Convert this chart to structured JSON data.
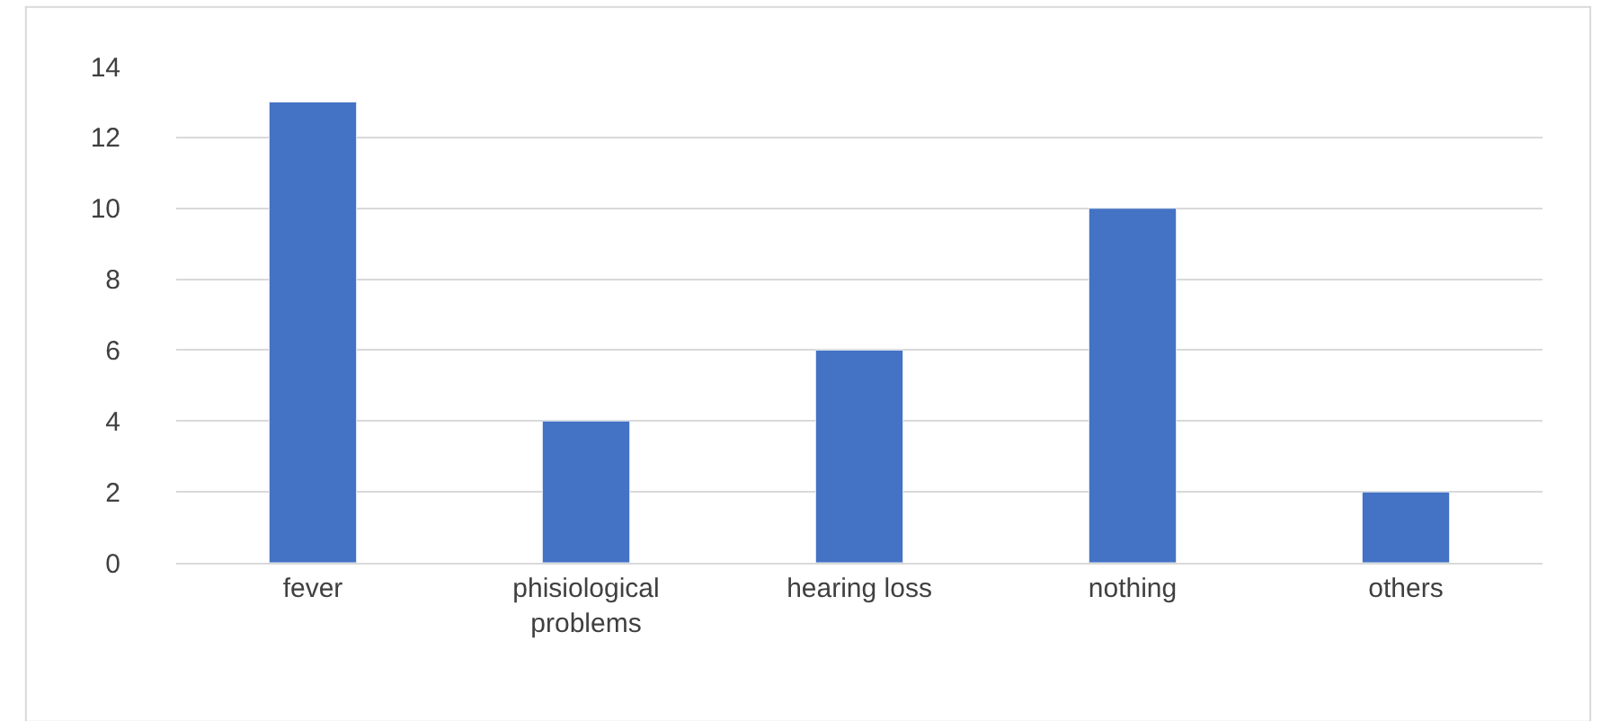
{
  "chart_data": {
    "type": "bar",
    "categories": [
      "fever",
      "phisiological problems",
      "hearing loss",
      "nothing",
      "others"
    ],
    "values": [
      13,
      4,
      6,
      10,
      2
    ],
    "color": "#4472c4",
    "ylim": [
      0,
      14
    ],
    "yticks": [
      0,
      2,
      4,
      6,
      8,
      10,
      12,
      14
    ],
    "grid": "y",
    "legend": false
  }
}
